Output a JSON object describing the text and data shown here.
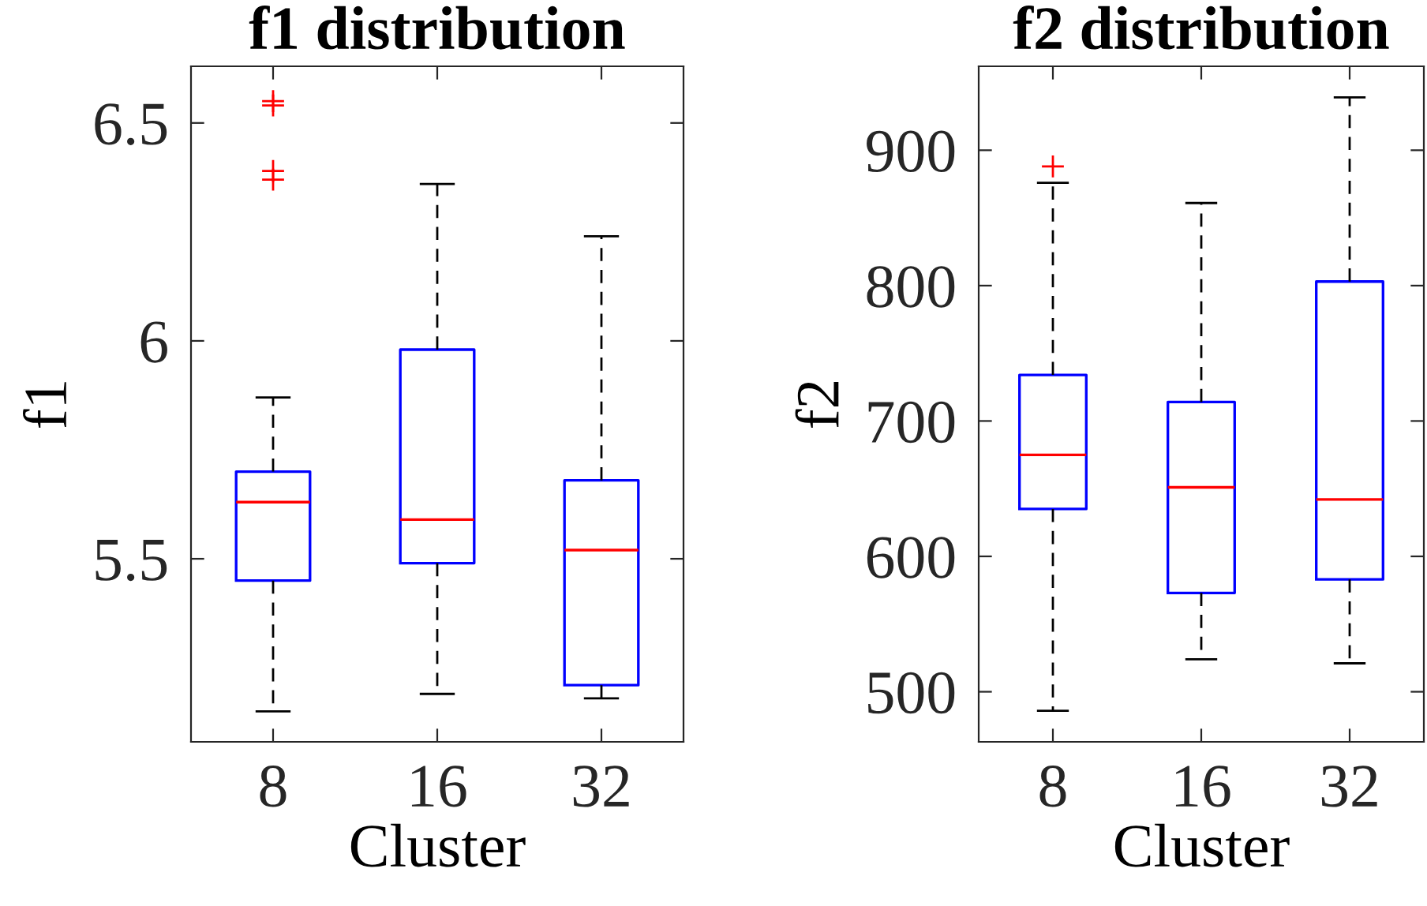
{
  "chart_data": [
    {
      "type": "box",
      "title": "f1 distribution",
      "xlabel": "Cluster",
      "ylabel": "f1",
      "categories": [
        "8",
        "16",
        "32"
      ],
      "ylim": [
        5.08,
        6.63
      ],
      "yticks": [
        5.5,
        6,
        6.5
      ],
      "grid": false,
      "series": [
        {
          "color": "#0000ff",
          "boxes": [
            {
              "low": 5.15,
              "q1": 5.45,
              "median": 5.63,
              "q3": 5.7,
              "high": 5.87,
              "outliers": [
                6.55,
                6.54,
                6.39,
                6.37
              ]
            },
            {
              "low": 5.19,
              "q1": 5.49,
              "median": 5.59,
              "q3": 5.98,
              "high": 6.36
            },
            {
              "low": 5.18,
              "q1": 5.21,
              "median": 5.52,
              "q3": 5.68,
              "high": 6.24
            }
          ]
        }
      ]
    },
    {
      "type": "box",
      "title": "f2 distribution",
      "xlabel": "Cluster",
      "ylabel": "f2",
      "categories": [
        "8",
        "16",
        "32"
      ],
      "ylim": [
        463,
        962
      ],
      "yticks": [
        500,
        600,
        700,
        800,
        900
      ],
      "grid": false,
      "series": [
        {
          "color": "#0000ff",
          "boxes": [
            {
              "low": 486,
              "q1": 635,
              "median": 675,
              "q3": 734,
              "high": 876,
              "outliers": [
                888
              ]
            },
            {
              "low": 524,
              "q1": 573,
              "median": 651,
              "q3": 714,
              "high": 861
            },
            {
              "low": 521,
              "q1": 583,
              "median": 642,
              "q3": 803,
              "high": 939
            }
          ]
        }
      ]
    }
  ]
}
